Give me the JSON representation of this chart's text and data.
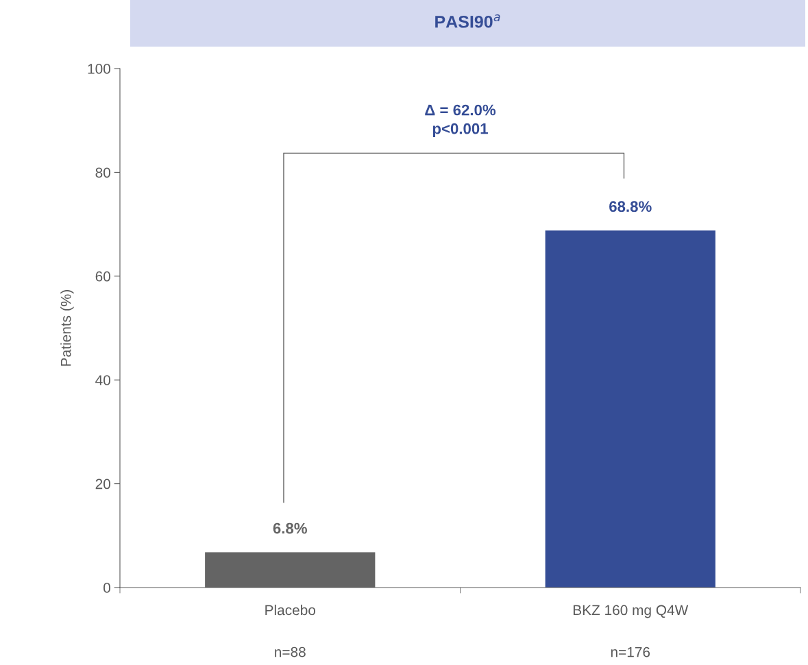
{
  "chart_data": {
    "type": "bar",
    "title": "PASI90$^{a}$",
    "ylabel": "Patients (%)",
    "categories": [
      "Placebo",
      "BKZ 160 mg Q4W"
    ],
    "values": [
      6.8,
      68.8
    ],
    "colors": [
      "#646464",
      "#354d96"
    ],
    "value_labels": [
      "6.8%",
      "68.8%"
    ],
    "ylim": [
      0,
      100
    ],
    "yticks": [
      0,
      20,
      40,
      60,
      80,
      100
    ],
    "grid": false,
    "legend": false,
    "annotations": [
      "Δ = 62.0%\np<0.001",
      "n=88",
      "n=176"
    ]
  }
}
